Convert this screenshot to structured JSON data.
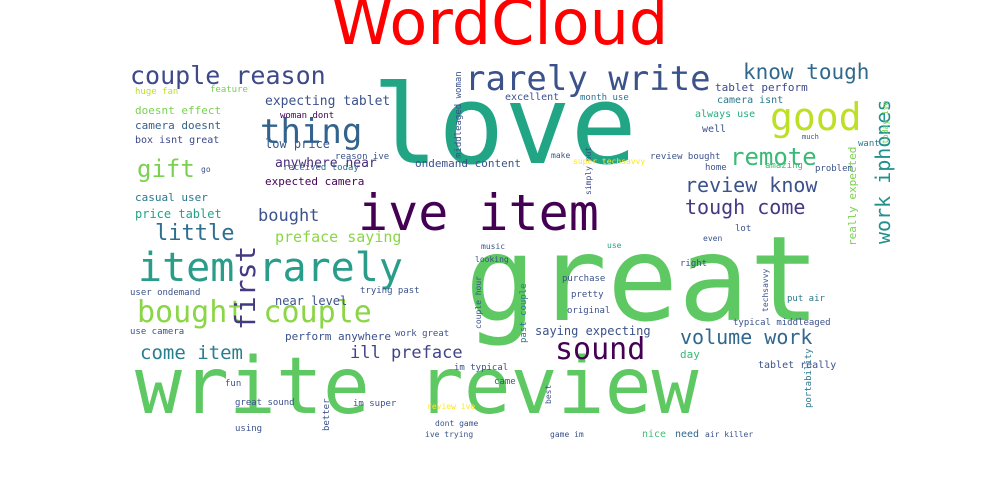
{
  "title": "WordCloud",
  "colors": {
    "title": "#ff0000",
    "background": "#ffffff"
  },
  "words": [
    "write review",
    "love",
    "great",
    "ive item",
    "item rarely",
    "rarely write",
    "couple reason",
    "bought couple",
    "good",
    "first",
    "thing",
    "gift",
    "remote",
    "review know",
    "know tough",
    "tough come",
    "little",
    "bought",
    "sound",
    "volume work",
    "work iphones",
    "come item",
    "ill preface",
    "preface saying",
    "anywhere near",
    "expecting tablet",
    "low price",
    "expected camera",
    "casual user",
    "price tablet",
    "camera doesnt",
    "doesnt effect",
    "box isnt great",
    "huge fan",
    "feature",
    "reason ive",
    "woman dont",
    "middleaged woman",
    "ondemand content",
    "received today",
    "excellent",
    "month use",
    "always use",
    "camera isnt",
    "tablet perform",
    "today ive",
    "want",
    "much",
    "well",
    "make",
    "simply put",
    "review bought",
    "super techsavvy",
    "home",
    "problem",
    "amazing",
    "even",
    "lot",
    "really expected",
    "put air",
    "music",
    "looking",
    "use",
    "purchase",
    "pretty",
    "original",
    "right",
    "past couple",
    "couple hour",
    "trying past",
    "near level",
    "saying expecting",
    "user ondemand",
    "use camera",
    "perform anywhere",
    "work great",
    "typical middleaged",
    "tablet really",
    "portability",
    "day",
    "better",
    "came",
    "im typical",
    "im super",
    "review ive",
    "dont game",
    "ive trying",
    "game im",
    "nice",
    "need",
    "air killer",
    "fun",
    "great sound",
    "using",
    "best",
    "go",
    "techsavvy"
  ]
}
